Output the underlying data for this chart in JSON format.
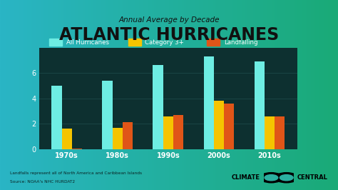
{
  "title_top": "Annual Average by Decade",
  "title_main": "ATLANTIC HURRICANES",
  "categories": [
    "1970s",
    "1980s",
    "1990s",
    "2000s",
    "2010s"
  ],
  "all_hurricanes": [
    5.0,
    5.4,
    6.6,
    7.3,
    6.9
  ],
  "category3plus": [
    1.6,
    1.7,
    2.6,
    3.8,
    2.6
  ],
  "landfalling": [
    0.05,
    2.1,
    2.7,
    3.6,
    2.6
  ],
  "color_all": "#6EEDE3",
  "color_cat3": "#F5C400",
  "color_land": "#E05518",
  "bg_chart": "#0d3030",
  "legend_labels": [
    "All Hurricanes",
    "Category 3+",
    "Landfalling"
  ],
  "ylim": [
    0,
    8
  ],
  "yticks": [
    0,
    2,
    4,
    6
  ],
  "footnote1": "Landfalls represent all of North America and Caribbean Islands",
  "footnote2": "Source: NOAA's NHC HURDAT2",
  "bar_width": 0.2,
  "gridline_color": "#1a4545"
}
